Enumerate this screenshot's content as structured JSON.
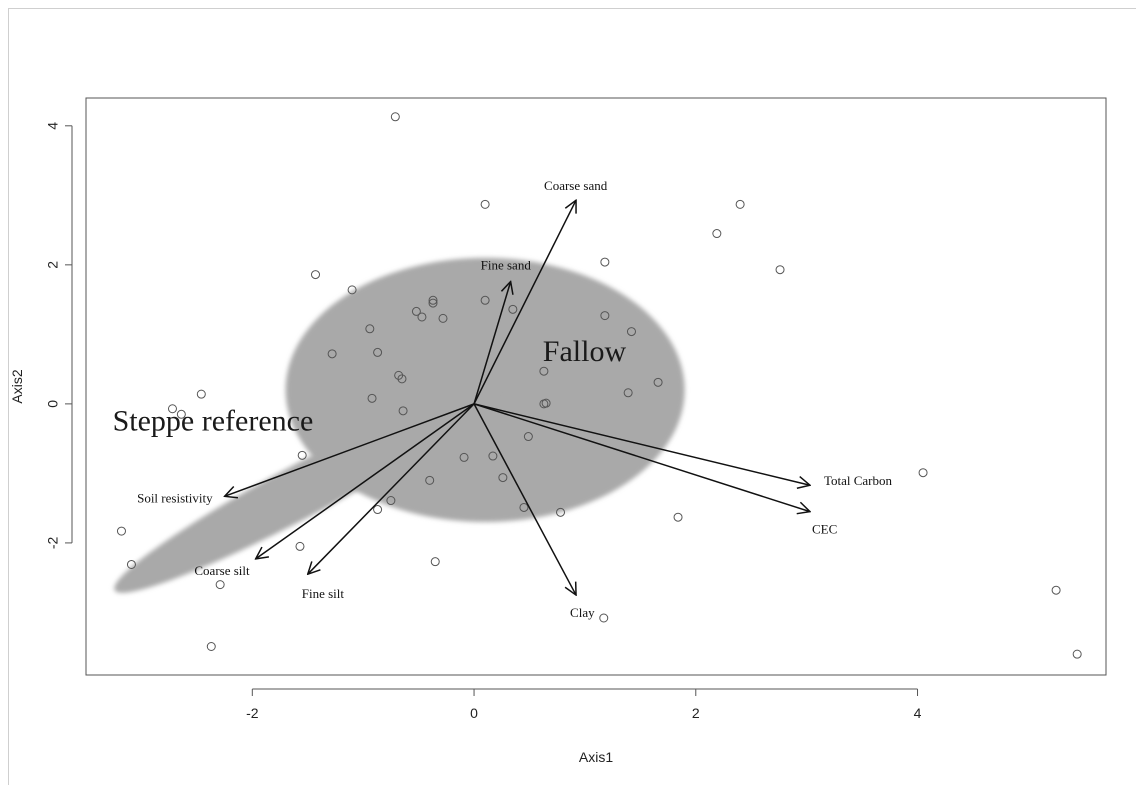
{
  "chart_data": {
    "type": "scatter",
    "title": "",
    "xlabel": "Axis1",
    "ylabel": "Axis2",
    "xlim": [
      -3.5,
      5.7
    ],
    "ylim": [
      -3.9,
      4.4
    ],
    "x_ticks": [
      -2,
      0,
      2,
      4
    ],
    "y_ticks": [
      -2,
      0,
      2,
      4
    ],
    "grid": false,
    "colors": {
      "ellipse": "#a9a9a9",
      "points": "#555555",
      "arrows": "#111111"
    },
    "groups": [
      {
        "name": "Fallow",
        "center": [
          0.1,
          0.2
        ],
        "radius": [
          1.8,
          1.9
        ],
        "angle": 0
      },
      {
        "name": "Steppe reference",
        "center": [
          -1.52,
          -1.22
        ],
        "radius": [
          1.95,
          0.38
        ],
        "angle": -28
      }
    ],
    "vectors": [
      {
        "label": "Coarse sand",
        "x": 0.92,
        "y": 2.93
      },
      {
        "label": "Fine sand",
        "x": 0.33,
        "y": 1.76
      },
      {
        "label": "Total Carbon",
        "x": 3.03,
        "y": -1.17
      },
      {
        "label": "CEC",
        "x": 3.03,
        "y": -1.55
      },
      {
        "label": "Clay",
        "x": 0.92,
        "y": -2.75
      },
      {
        "label": "Fine silt",
        "x": -1.5,
        "y": -2.45
      },
      {
        "label": "Coarse silt",
        "x": -1.97,
        "y": -2.23
      },
      {
        "label": "Soil resistivity",
        "x": -2.25,
        "y": -1.33
      }
    ],
    "points": [
      [
        -0.71,
        4.13
      ],
      [
        0.1,
        2.87
      ],
      [
        2.4,
        2.87
      ],
      [
        2.19,
        2.45
      ],
      [
        2.76,
        1.93
      ],
      [
        1.18,
        2.04
      ],
      [
        -1.43,
        1.86
      ],
      [
        -1.1,
        1.64
      ],
      [
        -0.37,
        1.49
      ],
      [
        -0.37,
        1.45
      ],
      [
        0.1,
        1.49
      ],
      [
        0.35,
        1.36
      ],
      [
        -0.52,
        1.33
      ],
      [
        -0.47,
        1.25
      ],
      [
        -0.28,
        1.23
      ],
      [
        1.18,
        1.27
      ],
      [
        -0.94,
        1.08
      ],
      [
        1.42,
        1.04
      ],
      [
        -1.28,
        0.72
      ],
      [
        -0.87,
        0.74
      ],
      [
        0.63,
        0.47
      ],
      [
        -0.68,
        0.41
      ],
      [
        -0.65,
        0.36
      ],
      [
        1.66,
        0.31
      ],
      [
        1.39,
        0.16
      ],
      [
        -0.92,
        0.08
      ],
      [
        0.65,
        0.01
      ],
      [
        0.63,
        0.0
      ],
      [
        -0.64,
        -0.1
      ],
      [
        -2.72,
        -0.07
      ],
      [
        -2.64,
        -0.15
      ],
      [
        -2.46,
        0.14
      ],
      [
        0.49,
        -0.47
      ],
      [
        -1.55,
        -0.74
      ],
      [
        -0.09,
        -0.77
      ],
      [
        0.17,
        -0.75
      ],
      [
        0.26,
        -1.06
      ],
      [
        -0.4,
        -1.1
      ],
      [
        4.05,
        -0.99
      ],
      [
        -0.75,
        -1.39
      ],
      [
        -0.87,
        -1.52
      ],
      [
        0.45,
        -1.49
      ],
      [
        0.78,
        -1.56
      ],
      [
        1.84,
        -1.63
      ],
      [
        -3.18,
        -1.83
      ],
      [
        -1.57,
        -2.05
      ],
      [
        -0.35,
        -2.27
      ],
      [
        -3.09,
        -2.31
      ],
      [
        -2.29,
        -2.6
      ],
      [
        1.17,
        -3.08
      ],
      [
        -2.37,
        -3.49
      ],
      [
        5.25,
        -2.68
      ],
      [
        5.44,
        -3.6
      ]
    ]
  }
}
